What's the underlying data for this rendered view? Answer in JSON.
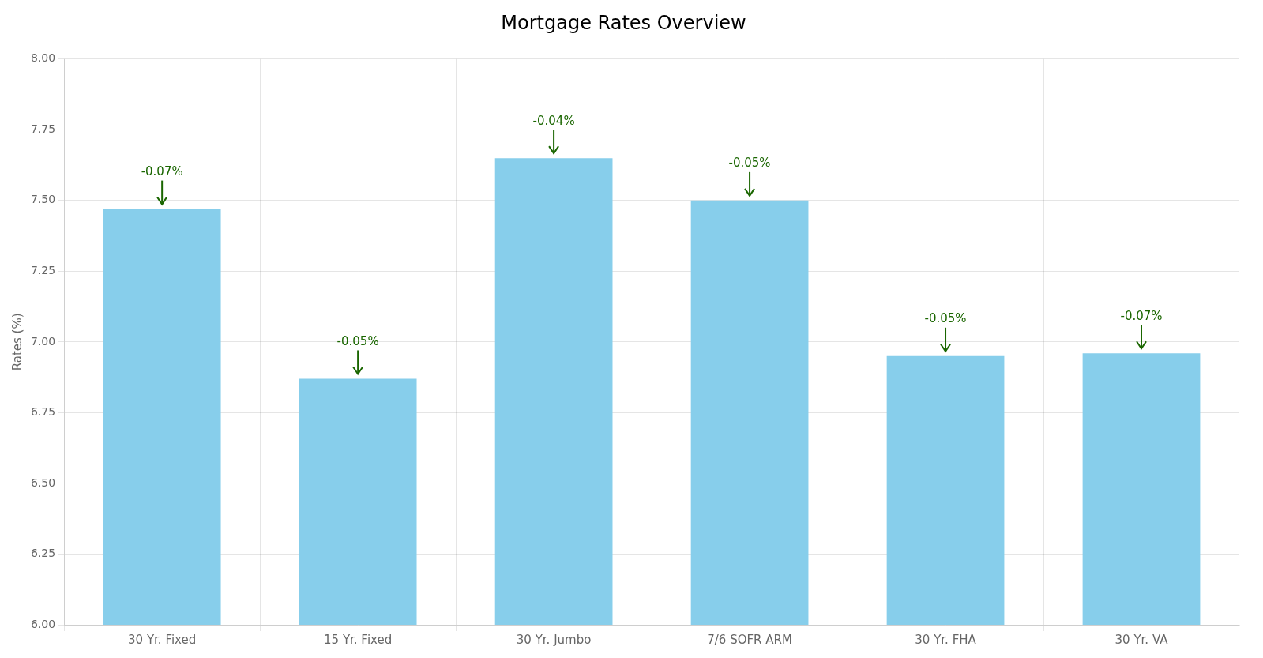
{
  "chart_data": {
    "type": "bar",
    "title": "Mortgage Rates Overview",
    "categories": [
      "30 Yr. Fixed",
      "15 Yr. Fixed",
      "30 Yr. Jumbo",
      "7/6 SOFR ARM",
      "30 Yr. FHA",
      "30 Yr. VA"
    ],
    "values": [
      7.47,
      6.87,
      7.65,
      7.5,
      6.95,
      6.96
    ],
    "color": "#87CEEB",
    "ylabel": "Rates (%)",
    "ylim": [
      6.0,
      8.0
    ],
    "yticks": [
      {
        "value": 6.0,
        "label": "6.00"
      },
      6.25,
      {
        "value": 6.5,
        "label": "6.50"
      },
      6.75,
      {
        "value": 7.0,
        "label": "7.00"
      },
      7.25,
      {
        "value": 7.5,
        "label": "7.50"
      },
      7.75,
      {
        "value": 8.0,
        "label": "8.00"
      }
    ],
    "grid": true,
    "annotations": [
      {
        "category": "30 Yr. Fixed",
        "text": "-0.07%",
        "color": "#1a6600"
      },
      {
        "category": "15 Yr. Fixed",
        "text": "-0.05%",
        "color": "#1a6600"
      },
      {
        "category": "30 Yr. Jumbo",
        "text": "-0.04%",
        "color": "#1a6600"
      },
      {
        "category": "7/6 SOFR ARM",
        "text": "-0.05%",
        "color": "#1a6600"
      },
      {
        "category": "30 Yr. FHA",
        "text": "-0.05%",
        "color": "#1a6600"
      },
      {
        "category": "30 Yr. VA",
        "text": "-0.07%",
        "color": "#1a6600"
      }
    ]
  }
}
